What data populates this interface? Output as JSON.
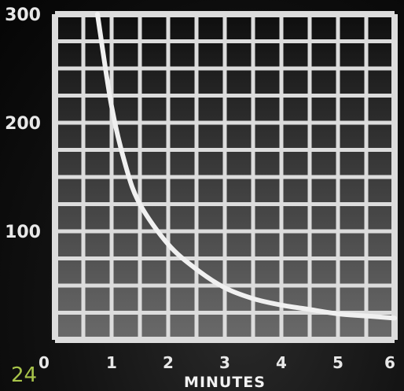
{
  "page_number": "24",
  "chart_data": {
    "type": "line",
    "title": "",
    "xlabel": "MINUTES",
    "ylabel": "",
    "xlim": [
      0,
      6
    ],
    "ylim": [
      0,
      300
    ],
    "x_ticks": [
      "0",
      "1",
      "2",
      "3",
      "4",
      "5",
      "6"
    ],
    "y_ticks": [
      "100",
      "200",
      "300"
    ],
    "grid": true,
    "legend": "none",
    "colors": {
      "grid": "#dcdcdc",
      "curve": "#f0f0f0",
      "cell_top": "#0e0e0e",
      "cell_bottom": "#6a6a6a"
    },
    "series": [
      {
        "x": [
          0.75,
          1.0,
          1.25,
          1.5,
          2.0,
          2.5,
          3.0,
          3.5,
          4.0,
          4.5,
          5.0,
          5.5,
          6.0
        ],
        "y": [
          300,
          215,
          160,
          125,
          88,
          65,
          48,
          38,
          32,
          28,
          24,
          22,
          20
        ]
      }
    ]
  }
}
